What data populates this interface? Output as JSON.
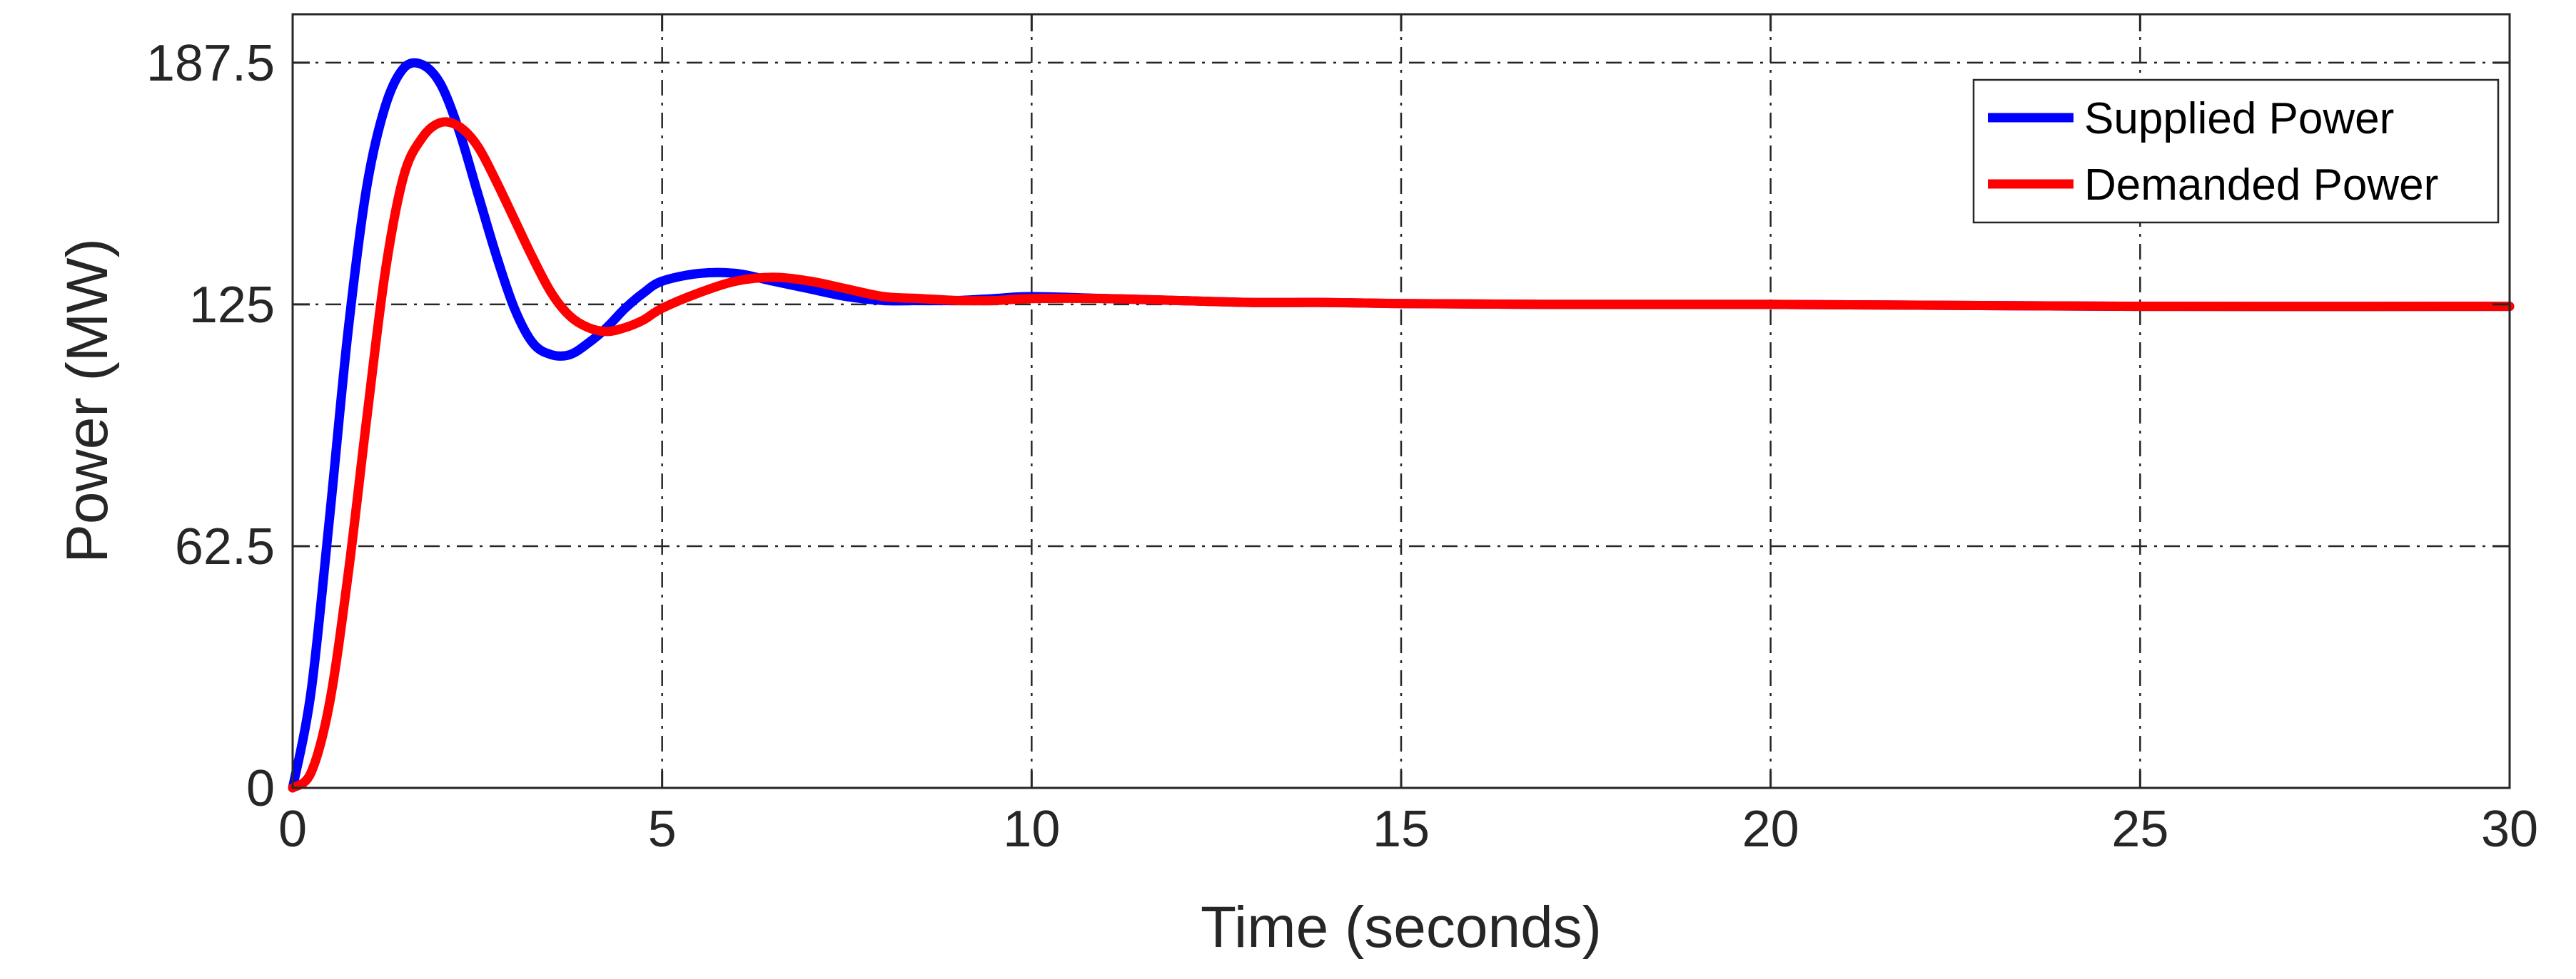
{
  "chart_data": {
    "type": "line",
    "title": "",
    "xlabel": "Time (seconds)",
    "ylabel": "Power (MW)",
    "xlim": [
      0,
      30
    ],
    "ylim": [
      0,
      200
    ],
    "xticks": [
      0,
      5,
      10,
      15,
      20,
      25,
      30
    ],
    "yticks": [
      0,
      62.5,
      125,
      187.5
    ],
    "xtick_labels": [
      "0",
      "5",
      "10",
      "15",
      "20",
      "25",
      "30"
    ],
    "ytick_labels": [
      "0",
      "62.5",
      "125",
      "187.5"
    ],
    "grid": true,
    "legend_position": "top-right",
    "series": [
      {
        "name": "Supplied Power",
        "color": "#0000ff",
        "x": [
          0,
          0.25,
          0.5,
          0.75,
          1.0,
          1.25,
          1.5,
          1.75,
          2.0,
          2.25,
          2.5,
          2.75,
          3.0,
          3.25,
          3.5,
          3.75,
          4.0,
          4.25,
          4.5,
          4.75,
          5.0,
          5.5,
          6.0,
          6.5,
          7.0,
          7.5,
          8.0,
          8.5,
          9.0,
          9.5,
          10,
          11,
          12,
          13,
          14,
          15,
          17,
          20,
          25,
          30
        ],
        "values": [
          0,
          25,
          70,
          118,
          155,
          176,
          186,
          187,
          182,
          170,
          154,
          138,
          124,
          115,
          112,
          112,
          115,
          119,
          124,
          128,
          131,
          133,
          133,
          131,
          129,
          127,
          126,
          126,
          126,
          126.5,
          127,
          126.5,
          126,
          125.5,
          125.5,
          125.2,
          125,
          125,
          124.5,
          124.5
        ]
      },
      {
        "name": "Demanded Power",
        "color": "#ff0000",
        "x": [
          0,
          0.25,
          0.5,
          0.75,
          1.0,
          1.25,
          1.5,
          1.75,
          2.0,
          2.25,
          2.5,
          2.75,
          3.0,
          3.25,
          3.5,
          3.75,
          4.0,
          4.25,
          4.5,
          4.75,
          5.0,
          5.5,
          6.0,
          6.5,
          7.0,
          7.5,
          8.0,
          8.5,
          9.0,
          9.5,
          10,
          11,
          12,
          13,
          14,
          15,
          17,
          20,
          25,
          30
        ],
        "values": [
          0,
          4,
          22,
          55,
          95,
          133,
          158,
          168,
          172,
          171,
          166,
          157,
          147,
          137,
          128,
          122,
          119,
          118,
          119,
          121,
          124,
          128,
          131,
          132,
          131,
          129,
          127,
          126.5,
          126,
          126,
          126.5,
          126.5,
          126,
          125.5,
          125.5,
          125.2,
          125,
          125,
          124.5,
          124.5
        ]
      }
    ]
  }
}
